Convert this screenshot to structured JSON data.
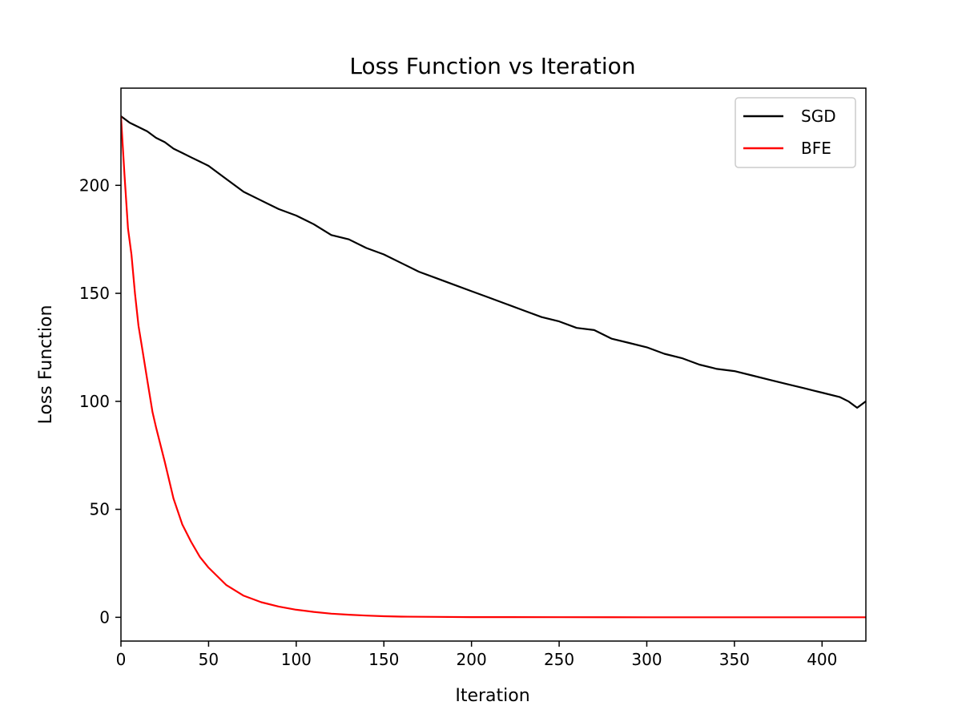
{
  "chart_data": {
    "type": "line",
    "title": "Loss Function vs Iteration",
    "xlabel": "Iteration",
    "ylabel": "Loss Function",
    "xlim": [
      0,
      425
    ],
    "ylim": [
      -11,
      245
    ],
    "xticks": [
      0,
      50,
      100,
      150,
      200,
      250,
      300,
      350,
      400
    ],
    "yticks": [
      0,
      50,
      100,
      150,
      200
    ],
    "grid": false,
    "legend_position": "top-right",
    "series": [
      {
        "name": "SGD",
        "color": "#000000",
        "x": [
          0,
          5,
          10,
          15,
          20,
          25,
          30,
          35,
          40,
          45,
          50,
          60,
          70,
          80,
          90,
          100,
          110,
          120,
          130,
          140,
          150,
          160,
          170,
          180,
          190,
          200,
          210,
          220,
          230,
          240,
          250,
          260,
          270,
          280,
          290,
          300,
          310,
          320,
          330,
          340,
          350,
          360,
          370,
          380,
          390,
          400,
          410,
          415,
          420,
          425
        ],
        "y": [
          232,
          229,
          227,
          225,
          222,
          220,
          217,
          215,
          213,
          211,
          209,
          203,
          197,
          193,
          189,
          186,
          182,
          177,
          175,
          171,
          168,
          164,
          160,
          157,
          154,
          151,
          148,
          145,
          142,
          139,
          137,
          134,
          133,
          129,
          127,
          125,
          122,
          120,
          117,
          115,
          114,
          112,
          110,
          108,
          106,
          104,
          102,
          100,
          97,
          100
        ]
      },
      {
        "name": "BFE",
        "color": "#ff0000",
        "x": [
          0,
          2,
          4,
          6,
          8,
          10,
          12,
          15,
          18,
          20,
          25,
          30,
          35,
          40,
          45,
          50,
          60,
          70,
          80,
          90,
          100,
          110,
          120,
          130,
          140,
          150,
          160,
          180,
          200,
          250,
          300,
          350,
          400,
          425
        ],
        "y": [
          232,
          205,
          180,
          168,
          150,
          135,
          125,
          110,
          95,
          88,
          72,
          55,
          43,
          35,
          28,
          23,
          15,
          10,
          7,
          5,
          3.5,
          2.5,
          1.7,
          1.2,
          0.8,
          0.5,
          0.3,
          0.2,
          0.1,
          0.05,
          0.02,
          0.01,
          0.01,
          0.01
        ]
      }
    ]
  }
}
